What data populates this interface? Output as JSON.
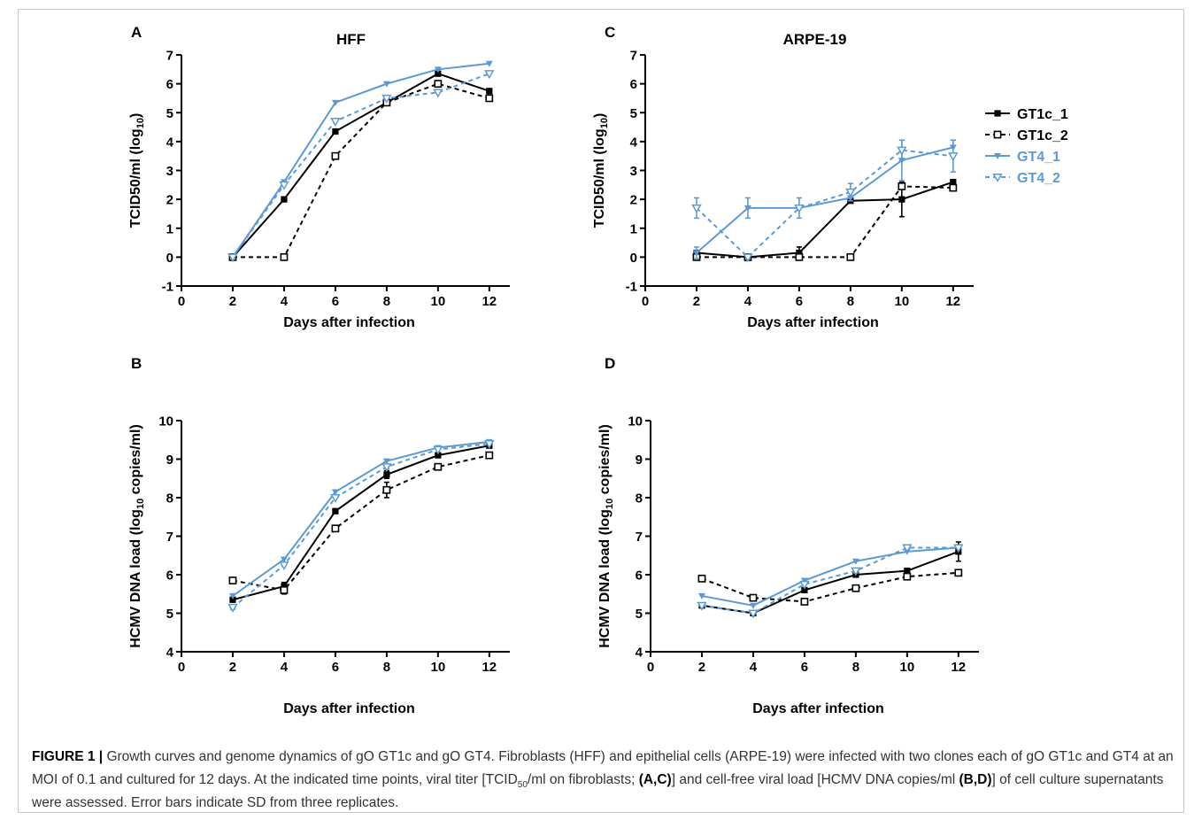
{
  "panels": [
    {
      "id": "A",
      "title": "HFF",
      "xlabel": "Days after infection",
      "ylabel_main": "TCID50/ml (log",
      "ylabel_sub": "10",
      "ylabel_end": ")",
      "xticks": [
        0,
        2,
        4,
        6,
        8,
        10,
        12
      ],
      "yticks": [
        -1,
        0,
        1,
        2,
        3,
        4,
        5,
        6,
        7
      ],
      "ylim": [
        -1,
        7
      ],
      "xlim": [
        0,
        12.8
      ]
    },
    {
      "id": "C",
      "title": "ARPE-19",
      "xlabel": "Days after infection",
      "ylabel_main": "TCID50/ml (log",
      "ylabel_sub": "10",
      "ylabel_end": ")",
      "xticks": [
        0,
        2,
        4,
        6,
        8,
        10,
        12
      ],
      "yticks": [
        -1,
        0,
        1,
        2,
        3,
        4,
        5,
        6,
        7
      ],
      "ylim": [
        -1,
        7
      ],
      "xlim": [
        0,
        12.8
      ]
    },
    {
      "id": "B",
      "title": "",
      "xlabel": "Days after infection",
      "ylabel_main": "HCMV DNA load (log",
      "ylabel_sub": "10",
      "ylabel_end": " copies/ml)",
      "xticks": [
        0,
        2,
        4,
        6,
        8,
        10,
        12
      ],
      "yticks": [
        4,
        5,
        6,
        7,
        8,
        9,
        10
      ],
      "ylim": [
        4,
        10
      ],
      "xlim": [
        0,
        12.8
      ]
    },
    {
      "id": "D",
      "title": "",
      "xlabel": "Days after infection",
      "ylabel_main": "HCMV DNA load (log",
      "ylabel_sub": "10",
      "ylabel_end": " copies/ml)",
      "xticks": [
        0,
        2,
        4,
        6,
        8,
        10,
        12
      ],
      "yticks": [
        4,
        5,
        6,
        7,
        8,
        9,
        10
      ],
      "ylim": [
        4,
        10
      ],
      "xlim": [
        0,
        12.8
      ]
    }
  ],
  "legend": {
    "placement": "right of panel C",
    "entries": [
      "GT1c_1",
      "GT1c_2",
      "GT4_1",
      "GT4_2"
    ]
  },
  "series_styles": [
    {
      "name": "GT1c_1",
      "color": "#000000",
      "dash": false,
      "marker": "filled-square"
    },
    {
      "name": "GT1c_2",
      "color": "#000000",
      "dash": true,
      "marker": "open-square"
    },
    {
      "name": "GT4_1",
      "color": "#5b9bd5",
      "dash": false,
      "marker": "filled-triangle-down"
    },
    {
      "name": "GT4_2",
      "color": "#5b9bd5",
      "dash": true,
      "marker": "open-triangle-down"
    }
  ],
  "chart_data": [
    {
      "panel": "A",
      "type": "line",
      "title": "HFF",
      "xlabel": "Days after infection",
      "ylabel": "TCID50/ml (log10)",
      "x": [
        2,
        4,
        6,
        8,
        10,
        12
      ],
      "ylim": [
        -1,
        7
      ],
      "series": [
        {
          "name": "GT1c_1",
          "values": [
            0,
            2.0,
            4.35,
            5.35,
            6.35,
            5.75
          ],
          "err": [
            0,
            0,
            0,
            0,
            0,
            0
          ]
        },
        {
          "name": "GT1c_2",
          "values": [
            0,
            0,
            3.5,
            5.35,
            6.0,
            5.5
          ],
          "err": [
            0,
            0,
            0,
            0,
            0,
            0
          ]
        },
        {
          "name": "GT4_1",
          "values": [
            0,
            2.6,
            5.35,
            6.0,
            6.5,
            6.7
          ],
          "err": [
            0,
            0,
            0,
            0,
            0,
            0
          ]
        },
        {
          "name": "GT4_2",
          "values": [
            0,
            2.5,
            4.7,
            5.5,
            5.7,
            6.35
          ],
          "err": [
            0,
            0,
            0,
            0,
            0,
            0
          ]
        }
      ]
    },
    {
      "panel": "C",
      "type": "line",
      "title": "ARPE-19",
      "xlabel": "Days after infection",
      "ylabel": "TCID50/ml (log10)",
      "x": [
        2,
        4,
        6,
        8,
        10,
        12
      ],
      "ylim": [
        -1,
        7
      ],
      "series": [
        {
          "name": "GT1c_1",
          "values": [
            0.15,
            0.0,
            0.15,
            1.95,
            2.0,
            2.6
          ],
          "err": [
            0,
            0,
            0.2,
            0,
            0.6,
            0
          ]
        },
        {
          "name": "GT1c_2",
          "values": [
            0,
            0,
            0,
            0,
            2.45,
            2.4
          ],
          "err": [
            0,
            0,
            0,
            0,
            0,
            0
          ]
        },
        {
          "name": "GT4_1",
          "values": [
            0.15,
            1.7,
            1.7,
            2.05,
            3.35,
            3.8
          ],
          "err": [
            0.2,
            0.35,
            0,
            0,
            0.7,
            0.25
          ]
        },
        {
          "name": "GT4_2",
          "values": [
            1.7,
            0,
            1.7,
            2.25,
            3.7,
            3.5
          ],
          "err": [
            0.35,
            0,
            0.35,
            0.3,
            0.35,
            0.55
          ]
        }
      ]
    },
    {
      "panel": "B",
      "type": "line",
      "title": "",
      "xlabel": "Days after infection",
      "ylabel": "HCMV DNA load (log10 copies/ml)",
      "x": [
        2,
        4,
        6,
        8,
        10,
        12
      ],
      "ylim": [
        4,
        10
      ],
      "series": [
        {
          "name": "GT1c_1",
          "values": [
            5.35,
            5.7,
            7.65,
            8.6,
            9.1,
            9.35
          ],
          "err": [
            0,
            0.1,
            0,
            0.1,
            0,
            0
          ]
        },
        {
          "name": "GT1c_2",
          "values": [
            5.85,
            5.6,
            7.2,
            8.2,
            8.8,
            9.1
          ],
          "err": [
            0,
            0.1,
            0,
            0.2,
            0,
            0
          ]
        },
        {
          "name": "GT4_1",
          "values": [
            5.45,
            6.4,
            8.15,
            8.95,
            9.3,
            9.45
          ],
          "err": [
            0,
            0,
            0,
            0,
            0,
            0
          ]
        },
        {
          "name": "GT4_2",
          "values": [
            5.15,
            6.25,
            8.0,
            8.8,
            9.25,
            9.4
          ],
          "err": [
            0.05,
            0,
            0,
            0.05,
            0,
            0
          ]
        }
      ]
    },
    {
      "panel": "D",
      "type": "line",
      "title": "",
      "xlabel": "Days after infection",
      "ylabel": "HCMV DNA load (log10 copies/ml)",
      "x": [
        2,
        4,
        6,
        8,
        10,
        12
      ],
      "ylim": [
        4,
        10
      ],
      "series": [
        {
          "name": "GT1c_1",
          "values": [
            5.2,
            5.0,
            5.6,
            6.0,
            6.1,
            6.6
          ],
          "err": [
            0.05,
            0,
            0,
            0,
            0,
            0.25
          ]
        },
        {
          "name": "GT1c_2",
          "values": [
            5.9,
            5.4,
            5.3,
            5.65,
            5.95,
            6.05
          ],
          "err": [
            0,
            0,
            0,
            0,
            0,
            0
          ]
        },
        {
          "name": "GT4_1",
          "values": [
            5.45,
            5.2,
            5.85,
            6.35,
            6.6,
            6.7
          ],
          "err": [
            0,
            0,
            0,
            0,
            0,
            0
          ]
        },
        {
          "name": "GT4_2",
          "values": [
            5.2,
            5.0,
            5.75,
            6.1,
            6.7,
            6.7
          ],
          "err": [
            0,
            0,
            0,
            0.05,
            0,
            0
          ]
        }
      ]
    }
  ],
  "caption": {
    "label": "FIGURE 1 |",
    "text1": " Growth curves and genome dynamics of gO GT1c and gO GT4. Fibroblasts (HFF) and epithelial cells (ARPE-19) were infected with two clones each of gO GT1c and GT4 at an MOI of 0.1 and cultured for 12 days. At the indicated time points, viral titer [TCID",
    "sub1": "50",
    "text2": "/ml on fibroblasts; ",
    "ref1": "(A,C)",
    "text3": "] and cell-free viral load [HCMV DNA copies/ml ",
    "ref2": "(B,D)",
    "text4": "] of cell culture supernatants were assessed. Error bars indicate SD from three replicates."
  }
}
